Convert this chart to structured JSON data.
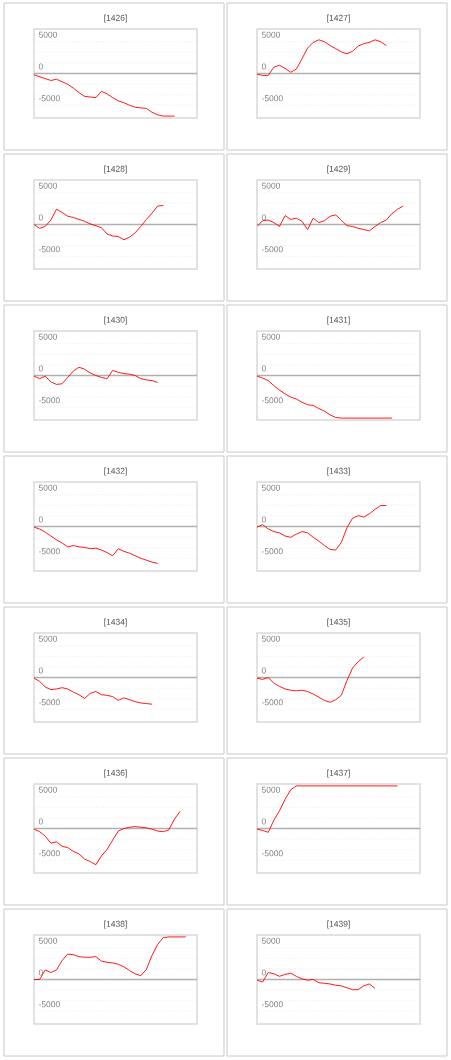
{
  "chart_data": [
    {
      "type": "line",
      "title": "[1426]",
      "categories": [
        null,
        null,
        null,
        null,
        null,
        null,
        null,
        null,
        null,
        null,
        null,
        null,
        null,
        null,
        null,
        null,
        null,
        null,
        null,
        null,
        null,
        null,
        null,
        null,
        null,
        null,
        null,
        null,
        null,
        null
      ],
      "color": "#ff0000",
      "values": [
        -200,
        -500,
        -800,
        -1100,
        -900,
        -1300,
        -1700,
        -2300,
        -3000,
        -3600,
        -3700,
        -3800,
        -2800,
        -3200,
        -3800,
        -4300,
        -4600,
        -5000,
        -5300,
        -5400,
        -5500,
        -6100,
        -6500,
        -6700,
        -6700,
        -6700,
        null,
        null,
        null,
        null
      ],
      "ylim": [
        -7000,
        7000
      ],
      "yticks": [
        -5000,
        0,
        5000
      ],
      "grid": true,
      "ref_lines": [
        {
          "axis": "y",
          "value": 0,
          "color": "#b0b0b0"
        }
      ]
    },
    {
      "type": "line",
      "title": "[1427]",
      "categories": [
        null,
        null,
        null,
        null,
        null,
        null,
        null,
        null,
        null,
        null,
        null,
        null,
        null,
        null,
        null,
        null,
        null,
        null,
        null,
        null,
        null,
        null,
        null,
        null,
        null,
        null,
        null,
        null,
        null,
        null
      ],
      "color": "#ff0000",
      "values": [
        -100,
        -300,
        -300,
        1000,
        1300,
        800,
        200,
        700,
        2300,
        4000,
        4900,
        5300,
        5000,
        4400,
        3900,
        3400,
        3100,
        3500,
        4300,
        4700,
        4900,
        5300,
        5000,
        4400,
        null,
        null,
        null,
        null,
        null,
        null
      ],
      "ylim": [
        -7000,
        7000
      ],
      "yticks": [
        -5000,
        0,
        5000
      ],
      "grid": true,
      "ref_lines": [
        {
          "axis": "y",
          "value": 0,
          "color": "#b0b0b0"
        }
      ]
    },
    {
      "type": "line",
      "title": "[1428]",
      "categories": [
        null,
        null,
        null,
        null,
        null,
        null,
        null,
        null,
        null,
        null,
        null,
        null,
        null,
        null,
        null,
        null,
        null,
        null,
        null,
        null,
        null,
        null,
        null,
        null,
        null,
        null,
        null,
        null,
        null,
        null
      ],
      "color": "#ff0000",
      "values": [
        0,
        -600,
        -300,
        700,
        2400,
        1900,
        1300,
        1100,
        800,
        500,
        100,
        -200,
        -500,
        -1500,
        -1800,
        -1900,
        -2400,
        -2000,
        -1300,
        -300,
        800,
        1800,
        2900,
        3000,
        null,
        null,
        null,
        null,
        null,
        null
      ],
      "ylim": [
        -7000,
        7000
      ],
      "yticks": [
        -5000,
        0,
        5000
      ],
      "grid": true,
      "ref_lines": [
        {
          "axis": "y",
          "value": 0,
          "color": "#b0b0b0"
        }
      ]
    },
    {
      "type": "line",
      "title": "[1429]",
      "categories": [
        null,
        null,
        null,
        null,
        null,
        null,
        null,
        null,
        null,
        null,
        null,
        null,
        null,
        null,
        null,
        null,
        null,
        null,
        null,
        null,
        null,
        null,
        null,
        null,
        null,
        null,
        null,
        null,
        null,
        null
      ],
      "color": "#ff0000",
      "values": [
        -300,
        600,
        700,
        300,
        -300,
        1400,
        800,
        1000,
        500,
        -800,
        1000,
        300,
        600,
        1300,
        1500,
        700,
        -200,
        -300,
        -600,
        -800,
        -1000,
        -300,
        300,
        700,
        1700,
        2400,
        2900,
        null,
        null,
        null
      ],
      "ylim": [
        -7000,
        7000
      ],
      "yticks": [
        -5000,
        0,
        5000
      ],
      "grid": true,
      "ref_lines": [
        {
          "axis": "y",
          "value": 0,
          "color": "#b0b0b0"
        }
      ]
    },
    {
      "type": "line",
      "title": "[1430]",
      "categories": [
        null,
        null,
        null,
        null,
        null,
        null,
        null,
        null,
        null,
        null,
        null,
        null,
        null,
        null,
        null,
        null,
        null,
        null,
        null,
        null,
        null,
        null,
        null,
        null,
        null,
        null,
        null,
        null,
        null,
        null
      ],
      "color": "#ff0000",
      "values": [
        -100,
        -500,
        -100,
        -1000,
        -1400,
        -1300,
        -300,
        700,
        1300,
        1000,
        400,
        0,
        -300,
        -500,
        800,
        500,
        300,
        200,
        0,
        -500,
        -700,
        -800,
        -1100,
        null,
        null,
        null,
        null,
        null,
        null,
        null
      ],
      "ylim": [
        -7000,
        7000
      ],
      "yticks": [
        -5000,
        0,
        5000
      ],
      "grid": true,
      "ref_lines": [
        {
          "axis": "y",
          "value": 0,
          "color": "#b0b0b0"
        }
      ]
    },
    {
      "type": "line",
      "title": "[1431]",
      "categories": [
        null,
        null,
        null,
        null,
        null,
        null,
        null,
        null,
        null,
        null,
        null,
        null,
        null,
        null,
        null,
        null,
        null,
        null,
        null,
        null,
        null,
        null,
        null,
        null,
        null,
        null,
        null,
        null,
        null,
        null
      ],
      "color": "#ff0000",
      "values": [
        -100,
        -400,
        -800,
        -1600,
        -2300,
        -2900,
        -3400,
        -3700,
        -4200,
        -4600,
        -4700,
        -5200,
        -5600,
        -6200,
        -6600,
        -6700,
        -6700,
        -6700,
        -6700,
        -6700,
        -6700,
        -6700,
        -6700,
        -6700,
        -6700,
        null,
        null,
        null,
        null,
        null
      ],
      "ylim": [
        -7000,
        7000
      ],
      "yticks": [
        -5000,
        0,
        5000
      ],
      "grid": true,
      "ref_lines": [
        {
          "axis": "y",
          "value": 0,
          "color": "#b0b0b0"
        }
      ]
    },
    {
      "type": "line",
      "title": "[1432]",
      "categories": [
        null,
        null,
        null,
        null,
        null,
        null,
        null,
        null,
        null,
        null,
        null,
        null,
        null,
        null,
        null,
        null,
        null,
        null,
        null,
        null,
        null,
        null,
        null,
        null,
        null,
        null,
        null,
        null,
        null,
        null
      ],
      "color": "#ff0000",
      "values": [
        -100,
        -400,
        -900,
        -1500,
        -2100,
        -2600,
        -3200,
        -3000,
        -3200,
        -3300,
        -3500,
        -3400,
        -3700,
        -4100,
        -4600,
        -3500,
        -3900,
        -4200,
        -4600,
        -5000,
        -5300,
        -5600,
        -5800,
        null,
        null,
        null,
        null,
        null,
        null,
        null
      ],
      "ylim": [
        -7000,
        7000
      ],
      "yticks": [
        -5000,
        0,
        5000
      ],
      "grid": true,
      "ref_lines": [
        {
          "axis": "y",
          "value": 0,
          "color": "#b0b0b0"
        }
      ]
    },
    {
      "type": "line",
      "title": "[1433]",
      "categories": [
        null,
        null,
        null,
        null,
        null,
        null,
        null,
        null,
        null,
        null,
        null,
        null,
        null,
        null,
        null,
        null,
        null,
        null,
        null,
        null,
        null,
        null,
        null,
        null,
        null,
        null,
        null,
        null,
        null,
        null
      ],
      "color": "#ff0000",
      "values": [
        -100,
        300,
        -400,
        -800,
        -1000,
        -1500,
        -1700,
        -1200,
        -800,
        -1000,
        -1700,
        -2300,
        -3000,
        -3600,
        -3700,
        -2500,
        -200,
        1300,
        1700,
        1500,
        2000,
        2700,
        3300,
        3300,
        null,
        null,
        null,
        null,
        null,
        null
      ],
      "ylim": [
        -7000,
        7000
      ],
      "yticks": [
        -5000,
        0,
        5000
      ],
      "grid": true,
      "ref_lines": [
        {
          "axis": "y",
          "value": 0,
          "color": "#b0b0b0"
        }
      ]
    },
    {
      "type": "line",
      "title": "[1434]",
      "categories": [
        null,
        null,
        null,
        null,
        null,
        null,
        null,
        null,
        null,
        null,
        null,
        null,
        null,
        null,
        null,
        null,
        null,
        null,
        null,
        null,
        null,
        null,
        null,
        null,
        null,
        null,
        null,
        null,
        null,
        null
      ],
      "color": "#ff0000",
      "values": [
        -100,
        -600,
        -1500,
        -1900,
        -1800,
        -1600,
        -1800,
        -2300,
        -2700,
        -3300,
        -2500,
        -2200,
        -2700,
        -2800,
        -3000,
        -3600,
        -3200,
        -3500,
        -3800,
        -4000,
        -4100,
        -4200,
        null,
        null,
        null,
        null,
        null,
        null,
        null,
        null
      ],
      "ylim": [
        -7000,
        7000
      ],
      "yticks": [
        -5000,
        0,
        5000
      ],
      "grid": true,
      "ref_lines": [
        {
          "axis": "y",
          "value": 0,
          "color": "#b0b0b0"
        }
      ]
    },
    {
      "type": "line",
      "title": "[1435]",
      "categories": [
        null,
        null,
        null,
        null,
        null,
        null,
        null,
        null,
        null,
        null,
        null,
        null,
        null,
        null,
        null,
        null,
        null,
        null,
        null,
        null,
        null,
        null,
        null,
        null,
        null,
        null,
        null,
        null,
        null,
        null
      ],
      "color": "#ff0000",
      "values": [
        -100,
        -300,
        0,
        -900,
        -1400,
        -1800,
        -2000,
        -2100,
        -2000,
        -2200,
        -2600,
        -3100,
        -3600,
        -3900,
        -3500,
        -2800,
        -500,
        1500,
        2500,
        3200,
        null,
        null,
        null,
        null,
        null,
        null,
        null,
        null,
        null,
        null
      ],
      "ylim": [
        -7000,
        7000
      ],
      "yticks": [
        -5000,
        0,
        5000
      ],
      "grid": true,
      "ref_lines": [
        {
          "axis": "y",
          "value": 0,
          "color": "#b0b0b0"
        }
      ]
    },
    {
      "type": "line",
      "title": "[1436]",
      "categories": [
        null,
        null,
        null,
        null,
        null,
        null,
        null,
        null,
        null,
        null,
        null,
        null,
        null,
        null,
        null,
        null,
        null,
        null,
        null,
        null,
        null,
        null,
        null,
        null,
        null,
        null,
        null,
        null,
        null,
        null
      ],
      "color": "#ff0000",
      "values": [
        -100,
        -500,
        -1200,
        -2300,
        -2100,
        -2800,
        -3000,
        -3600,
        -4000,
        -4800,
        -5200,
        -5700,
        -4300,
        -3300,
        -1800,
        -400,
        0,
        200,
        300,
        200,
        100,
        -100,
        -400,
        -500,
        -200,
        1500,
        2700,
        null,
        null,
        null
      ],
      "ylim": [
        -7000,
        7000
      ],
      "yticks": [
        -5000,
        0,
        5000
      ],
      "grid": true,
      "ref_lines": [
        {
          "axis": "y",
          "value": 0,
          "color": "#b0b0b0"
        }
      ]
    },
    {
      "type": "line",
      "title": "[1437]",
      "categories": [
        null,
        null,
        null,
        null,
        null,
        null,
        null,
        null,
        null,
        null,
        null,
        null,
        null,
        null,
        null,
        null,
        null,
        null,
        null,
        null,
        null,
        null,
        null,
        null,
        null,
        null,
        null,
        null,
        null,
        null
      ],
      "color": "#ff0000",
      "values": [
        -100,
        -300,
        -600,
        1300,
        2800,
        4600,
        6100,
        6700,
        6700,
        6700,
        6700,
        6700,
        6700,
        6700,
        6700,
        6700,
        6700,
        6700,
        6700,
        6700,
        6700,
        6700,
        6700,
        6700,
        6700,
        6700,
        null,
        null,
        null,
        null
      ],
      "ylim": [
        -7000,
        7000
      ],
      "yticks": [
        -5000,
        0,
        5000
      ],
      "grid": true,
      "ref_lines": [
        {
          "axis": "y",
          "value": 0,
          "color": "#b0b0b0"
        }
      ]
    },
    {
      "type": "line",
      "title": "[1438]",
      "categories": [
        null,
        null,
        null,
        null,
        null,
        null,
        null,
        null,
        null,
        null,
        null,
        null,
        null,
        null,
        null,
        null,
        null,
        null,
        null,
        null,
        null,
        null,
        null,
        null,
        null,
        null,
        null,
        null,
        null,
        null
      ],
      "color": "#ff0000",
      "values": [
        0,
        0,
        1500,
        1100,
        1500,
        3000,
        4000,
        3900,
        3600,
        3500,
        3500,
        3600,
        2900,
        2700,
        2600,
        2400,
        2000,
        1400,
        900,
        600,
        1600,
        3800,
        5500,
        6600,
        6700,
        6700,
        6700,
        6700,
        null,
        null
      ],
      "ylim": [
        -7000,
        7000
      ],
      "yticks": [
        -5000,
        0,
        5000
      ],
      "grid": true,
      "ref_lines": [
        {
          "axis": "y",
          "value": 0,
          "color": "#b0b0b0"
        }
      ]
    },
    {
      "type": "line",
      "title": "[1439]",
      "categories": [
        null,
        null,
        null,
        null,
        null,
        null,
        null,
        null,
        null,
        null,
        null,
        null,
        null,
        null,
        null,
        null,
        null,
        null,
        null,
        null,
        null,
        null,
        null,
        null,
        null,
        null,
        null,
        null,
        null,
        null
      ],
      "color": "#ff0000",
      "values": [
        -100,
        -400,
        1100,
        900,
        500,
        800,
        1000,
        500,
        100,
        -100,
        0,
        -500,
        -600,
        -700,
        -900,
        -1000,
        -1300,
        -1600,
        -1600,
        -1000,
        -700,
        -1400,
        null,
        null,
        null,
        null,
        null,
        null,
        null,
        null
      ],
      "ylim": [
        -7000,
        7000
      ],
      "yticks": [
        -5000,
        0,
        5000
      ],
      "grid": true,
      "ref_lines": [
        {
          "axis": "y",
          "value": 0,
          "color": "#b0b0b0"
        }
      ]
    }
  ]
}
